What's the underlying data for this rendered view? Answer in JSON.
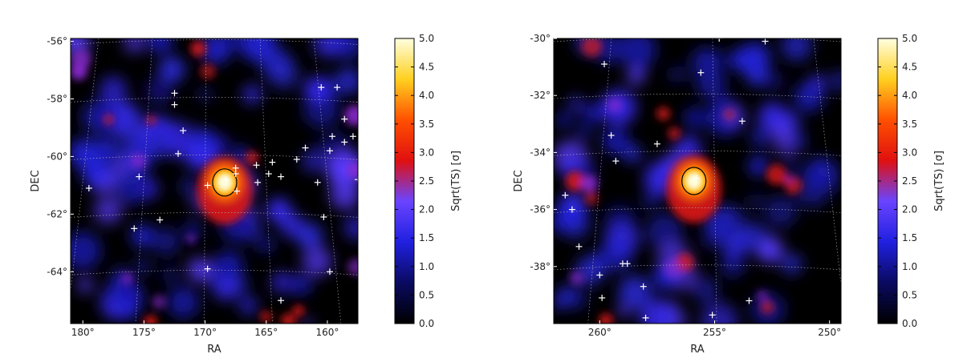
{
  "chart_data": [
    {
      "type": "heatmap",
      "title": "",
      "xlabel": "RA",
      "ylabel": "DEC",
      "x_ticks": [
        "180°",
        "175°",
        "170°",
        "165°",
        "160°"
      ],
      "y_ticks": [
        "-56°",
        "-58°",
        "-60°",
        "-62°",
        "-64°"
      ],
      "xlim": [
        181.0,
        157.5
      ],
      "ylim": [
        -65.8,
        -55.9
      ],
      "colorbar": {
        "label": "Sqrt(TS) [σ]",
        "ticks": [
          "5.0",
          "4.5",
          "4.0",
          "3.5",
          "3.0",
          "2.5",
          "2.0",
          "1.5",
          "1.0",
          "0.5",
          "0.0"
        ],
        "range": [
          0,
          5
        ],
        "colors": [
          "#000000",
          "#0a0a60",
          "#2020e0",
          "#6a44ff",
          "#e01010",
          "#ff5000",
          "#ffd020",
          "#ffffe0"
        ]
      },
      "bright_region": {
        "ra": 168.4,
        "dec": -60.9,
        "peak_sigma": 5.0
      },
      "grid": true,
      "sources": [
        {
          "ra": 179.5,
          "dec": -61.1
        },
        {
          "ra": 175.4,
          "dec": -60.7
        },
        {
          "ra": 175.8,
          "dec": -62.5
        },
        {
          "ra": 173.7,
          "dec": -62.2
        },
        {
          "ra": 172.5,
          "dec": -57.8
        },
        {
          "ra": 172.5,
          "dec": -58.2
        },
        {
          "ra": 171.8,
          "dec": -59.1
        },
        {
          "ra": 172.2,
          "dec": -59.9
        },
        {
          "ra": 169.8,
          "dec": -61.0
        },
        {
          "ra": 168.3,
          "dec": -60.8
        },
        {
          "ra": 167.5,
          "dec": -60.4
        },
        {
          "ra": 167.5,
          "dec": -60.6
        },
        {
          "ra": 167.4,
          "dec": -61.2
        },
        {
          "ra": 165.8,
          "dec": -60.3
        },
        {
          "ra": 165.7,
          "dec": -60.9
        },
        {
          "ra": 164.8,
          "dec": -60.6
        },
        {
          "ra": 164.5,
          "dec": -60.2
        },
        {
          "ra": 163.8,
          "dec": -60.7
        },
        {
          "ra": 162.5,
          "dec": -60.1
        },
        {
          "ra": 161.8,
          "dec": -59.7
        },
        {
          "ra": 160.8,
          "dec": -60.9
        },
        {
          "ra": 160.3,
          "dec": -62.1
        },
        {
          "ra": 159.8,
          "dec": -59.8
        },
        {
          "ra": 159.6,
          "dec": -59.3
        },
        {
          "ra": 158.6,
          "dec": -59.5
        },
        {
          "ra": 158.6,
          "dec": -58.7
        },
        {
          "ra": 157.9,
          "dec": -59.3
        },
        {
          "ra": 157.5,
          "dec": -60.8
        },
        {
          "ra": 159.8,
          "dec": -64.0
        },
        {
          "ra": 169.8,
          "dec": -63.9
        },
        {
          "ra": 163.8,
          "dec": -65.0
        },
        {
          "ra": 160.5,
          "dec": -57.6
        },
        {
          "ra": 159.2,
          "dec": -57.6
        }
      ]
    },
    {
      "type": "heatmap",
      "title": "",
      "xlabel": "RA",
      "ylabel": "DEC",
      "x_ticks": [
        "260°",
        "255°",
        "250°"
      ],
      "y_ticks": [
        "-30°",
        "-32°",
        "-34°",
        "-36°",
        "-38°"
      ],
      "xlim": [
        262.0,
        249.5
      ],
      "ylim": [
        -40.0,
        -30.0
      ],
      "colorbar": {
        "label": "Sqrt(TS) [σ]",
        "ticks": [
          "5.0",
          "4.5",
          "4.0",
          "3.5",
          "3.0",
          "2.5",
          "2.0",
          "1.5",
          "1.0",
          "0.5",
          "0.0"
        ],
        "range": [
          0,
          5
        ],
        "colors": [
          "#000000",
          "#0a0a60",
          "#2020e0",
          "#6a44ff",
          "#e01010",
          "#ff5000",
          "#ffd020",
          "#ffffe0"
        ]
      },
      "bright_region": {
        "ra": 255.9,
        "dec": -35.0,
        "peak_sigma": 4.5
      },
      "grid": true,
      "sources": [
        {
          "ra": 261.5,
          "dec": -35.5
        },
        {
          "ra": 261.2,
          "dec": -36.0
        },
        {
          "ra": 260.9,
          "dec": -37.3
        },
        {
          "ra": 260.0,
          "dec": -38.3
        },
        {
          "ra": 259.8,
          "dec": -30.9
        },
        {
          "ra": 259.5,
          "dec": -33.4
        },
        {
          "ra": 259.3,
          "dec": -34.3
        },
        {
          "ra": 259.0,
          "dec": -37.9
        },
        {
          "ra": 258.8,
          "dec": -37.9
        },
        {
          "ra": 258.1,
          "dec": -38.7
        },
        {
          "ra": 255.8,
          "dec": -34.9
        },
        {
          "ra": 255.6,
          "dec": -31.2
        },
        {
          "ra": 254.8,
          "dec": -30.0
        },
        {
          "ra": 253.8,
          "dec": -32.9
        },
        {
          "ra": 252.8,
          "dec": -30.1
        },
        {
          "ra": 253.5,
          "dec": -39.2
        },
        {
          "ra": 255.1,
          "dec": -39.7
        },
        {
          "ra": 258.0,
          "dec": -39.8
        },
        {
          "ra": 257.5,
          "dec": -33.7
        },
        {
          "ra": 259.9,
          "dec": -39.1
        }
      ]
    }
  ]
}
